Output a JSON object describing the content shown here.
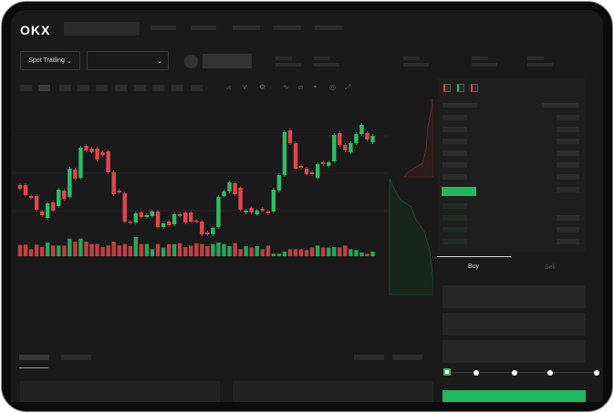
{
  "header": {
    "logo": "OKX",
    "nav_count": 5
  },
  "market": {
    "mode_label": "Spot Trading",
    "pair_select": "",
    "chevron": "chevron-down-icon"
  },
  "toolbar": {
    "icons": [
      "line-tool-icon",
      "indicator-icon",
      "settings-icon",
      "trend-icon",
      "ruler-icon",
      "camera-icon",
      "target-icon",
      "fullscreen-icon"
    ]
  },
  "orderbook": {
    "view_icons": [
      "both-sides-icon",
      "bids-icon",
      "asks-icon"
    ]
  },
  "trade": {
    "buy_tab": "Buy",
    "sell_tab": "Sell",
    "active_tab": "Buy",
    "leverage_slider_value": 0,
    "slider_steps": 5
  },
  "colors": {
    "up": "#2dbe66",
    "down": "#e0484b",
    "background": "#1a1a1a",
    "accent": "#22b85f"
  },
  "chart_data": {
    "type": "candlestick",
    "candles": [
      [
        97,
        93
      ],
      [
        97,
        86
      ],
      [
        85,
        83
      ],
      [
        85,
        70
      ],
      [
        68,
        64
      ],
      [
        61,
        77
      ],
      [
        78,
        69
      ],
      [
        74,
        92
      ],
      [
        91,
        82
      ],
      [
        84,
        115
      ],
      [
        114,
        104
      ],
      [
        105,
        138
      ],
      [
        140,
        135
      ],
      [
        137,
        133
      ],
      [
        137,
        125
      ],
      [
        133,
        130
      ],
      [
        134,
        111
      ],
      [
        111,
        87
      ],
      [
        91,
        89
      ],
      [
        88,
        57
      ],
      [
        57,
        56
      ],
      [
        56,
        66
      ],
      [
        67,
        62
      ],
      [
        62,
        64
      ],
      [
        63,
        68
      ],
      [
        68,
        51
      ],
      [
        51,
        55
      ],
      [
        57,
        53
      ],
      [
        54,
        65
      ],
      [
        65,
        63
      ],
      [
        67,
        56
      ],
      [
        67,
        57
      ],
      [
        58,
        57
      ],
      [
        57,
        43
      ],
      [
        45,
        43
      ],
      [
        43,
        50
      ],
      [
        51,
        84
      ],
      [
        85,
        90
      ],
      [
        90,
        100
      ],
      [
        99,
        87
      ],
      [
        94,
        70
      ],
      [
        67,
        69
      ],
      [
        72,
        67
      ],
      [
        65,
        69
      ],
      [
        71,
        69
      ],
      [
        68,
        66
      ],
      [
        68,
        92
      ],
      [
        91,
        108
      ],
      [
        108,
        155
      ],
      [
        157,
        143
      ],
      [
        143,
        115
      ],
      [
        118,
        116
      ],
      [
        115,
        109
      ],
      [
        111,
        109
      ],
      [
        105,
        120
      ],
      [
        122,
        120
      ],
      [
        118,
        122
      ],
      [
        123,
        152
      ],
      [
        154,
        141
      ],
      [
        141,
        135
      ],
      [
        133,
        143
      ],
      [
        143,
        153
      ],
      [
        153,
        163
      ],
      [
        154,
        147
      ],
      [
        144,
        151
      ]
    ],
    "volumes": [
      37,
      38,
      23,
      38,
      30,
      45,
      35,
      35,
      35,
      58,
      48,
      58,
      48,
      40,
      40,
      30,
      35,
      48,
      35,
      40,
      33,
      63,
      40,
      40,
      23,
      40,
      28,
      40,
      40,
      43,
      30,
      35,
      43,
      40,
      33,
      40,
      45,
      40,
      33,
      43,
      23,
      33,
      28,
      33,
      23,
      35,
      8,
      8,
      15,
      23,
      23,
      23,
      20,
      28,
      35,
      28,
      28,
      30,
      28,
      35,
      23,
      20,
      12,
      8,
      15
    ]
  }
}
